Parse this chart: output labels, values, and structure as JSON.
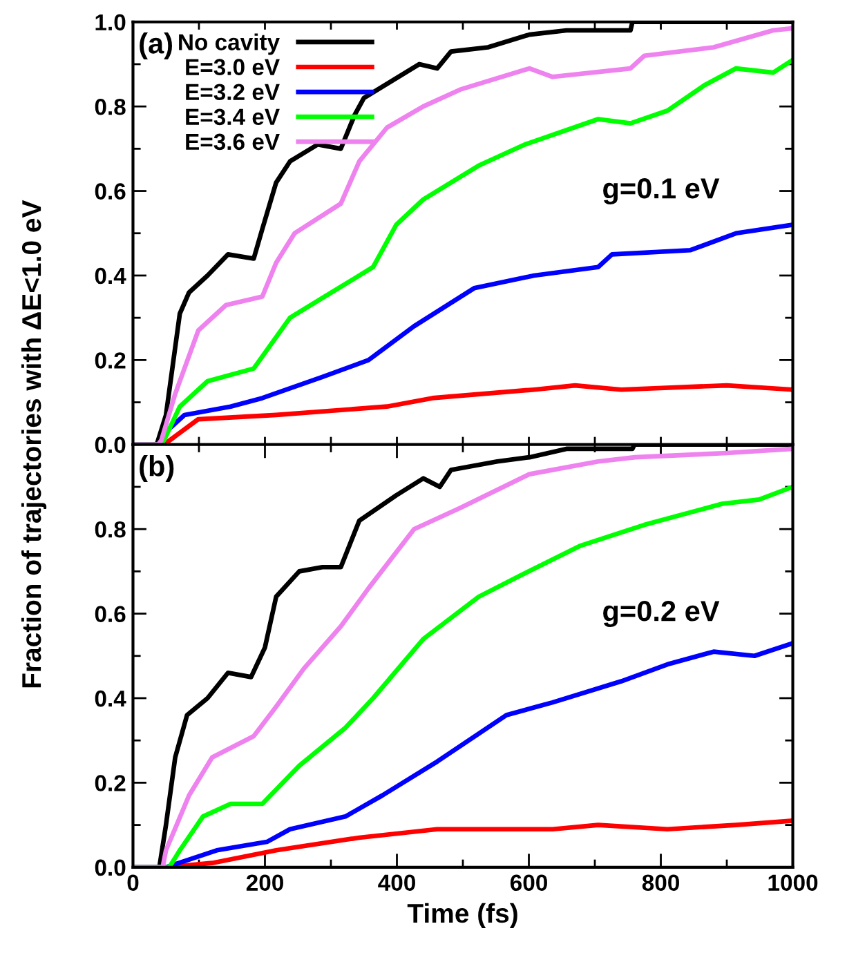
{
  "chart_data": [
    {
      "type": "line",
      "ylabel": "Fraction of trajectories with ΔE<1.0 eV",
      "annotations": [
        "(a)",
        "g=0.1 eV"
      ],
      "legend": "top left",
      "tick_labels": "y",
      "xlim": [
        0,
        1000
      ],
      "xticks": [
        {
          "value": 0,
          "label": null
        },
        {
          "value": 100,
          "label": null
        },
        {
          "value": 200,
          "label": null
        },
        {
          "value": 300,
          "label": null
        },
        {
          "value": 400,
          "label": null
        },
        {
          "value": 500,
          "label": null
        },
        {
          "value": 600,
          "label": null
        },
        {
          "value": 700,
          "label": null
        },
        {
          "value": 800,
          "label": null
        },
        {
          "value": 900,
          "label": null
        },
        {
          "value": 1000,
          "label": null
        }
      ],
      "ylim": [
        0,
        1.0
      ],
      "yticks": [
        {
          "value": 0,
          "label": "0.0"
        },
        {
          "value": 0.1,
          "label": null
        },
        0.2,
        {
          "value": 0.3,
          "label": null
        },
        0.4,
        {
          "value": 0.5,
          "label": null
        },
        0.6,
        {
          "value": 0.7,
          "label": null
        },
        0.8,
        {
          "value": 0.9,
          "label": null
        },
        {
          "value": 1.0,
          "label": "1.0"
        }
      ],
      "series": [
        {
          "name": "No cavity",
          "color": "#000000",
          "x": [
            0,
            36,
            50,
            71,
            85,
            113,
            144,
            183,
            196,
            217,
            238,
            280,
            315,
            336,
            350,
            392,
            434,
            461,
            482,
            538,
            601,
            657,
            754,
            757,
            1000
          ],
          "values": [
            0,
            0,
            0.07,
            0.31,
            0.36,
            0.4,
            0.45,
            0.44,
            0.51,
            0.62,
            0.67,
            0.71,
            0.7,
            0.78,
            0.82,
            0.86,
            0.9,
            0.89,
            0.93,
            0.94,
            0.97,
            0.98,
            0.98,
            1.0,
            1.0
          ]
        },
        {
          "name": "E=3.0 eV",
          "color": "#ff0000",
          "x": [
            0,
            47,
            99,
            217,
            385,
            454,
            608,
            670,
            740,
            900,
            1000
          ],
          "values": [
            0,
            0,
            0.06,
            0.07,
            0.09,
            0.11,
            0.13,
            0.14,
            0.13,
            0.14,
            0.13
          ]
        },
        {
          "name": "E=3.2 eV",
          "color": "#0000ff",
          "x": [
            0,
            40,
            50,
            78,
            148,
            196,
            287,
            357,
            426,
            517,
            608,
            705,
            726,
            845,
            914,
            1000
          ],
          "values": [
            0,
            0,
            0.03,
            0.07,
            0.09,
            0.11,
            0.16,
            0.2,
            0.28,
            0.37,
            0.4,
            0.42,
            0.45,
            0.46,
            0.5,
            0.52
          ]
        },
        {
          "name": "E=3.4 eV",
          "color": "#00ff00",
          "x": [
            0,
            40,
            47,
            71,
            113,
            183,
            238,
            301,
            364,
            399,
            440,
            524,
            594,
            705,
            754,
            810,
            866,
            914,
            970,
            1000
          ],
          "values": [
            0,
            0,
            0.01,
            0.09,
            0.15,
            0.18,
            0.3,
            0.36,
            0.42,
            0.52,
            0.58,
            0.66,
            0.71,
            0.77,
            0.76,
            0.79,
            0.85,
            0.89,
            0.88,
            0.91
          ]
        },
        {
          "name": "E=3.6 eV",
          "color": "#ee82ee",
          "x": [
            0,
            38,
            43,
            64,
            99,
            141,
            196,
            217,
            245,
            315,
            343,
            385,
            440,
            496,
            601,
            636,
            754,
            775,
            880,
            970,
            1000
          ],
          "values": [
            0,
            0,
            0.01,
            0.12,
            0.27,
            0.33,
            0.35,
            0.43,
            0.5,
            0.57,
            0.67,
            0.75,
            0.8,
            0.84,
            0.89,
            0.87,
            0.89,
            0.92,
            0.94,
            0.98,
            0.985
          ]
        }
      ]
    },
    {
      "type": "line",
      "xlabel": "Time (fs)",
      "annotations": [
        "(b)",
        "g=0.2 eV"
      ],
      "xlim": [
        0,
        1000
      ],
      "xticks": [
        0,
        {
          "value": 100,
          "label": null
        },
        200,
        {
          "value": 300,
          "label": null
        },
        400,
        {
          "value": 500,
          "label": null
        },
        600,
        {
          "value": 700,
          "label": null
        },
        800,
        {
          "value": 900,
          "label": null
        },
        1000
      ],
      "ylim": [
        0,
        1.0
      ],
      "yticks": [
        {
          "value": 0,
          "label": "0.0"
        },
        {
          "value": 0.1,
          "label": null
        },
        0.2,
        {
          "value": 0.3,
          "label": null
        },
        0.4,
        {
          "value": 0.5,
          "label": null
        },
        0.6,
        {
          "value": 0.7,
          "label": null
        },
        0.8,
        {
          "value": 0.9,
          "label": null
        },
        {
          "value": 1.0,
          "label": null
        }
      ],
      "series": [
        {
          "color": "#000000",
          "x": [
            0,
            40,
            50,
            64,
            82,
            113,
            144,
            179,
            200,
            217,
            252,
            287,
            315,
            343,
            399,
            440,
            465,
            482,
            552,
            601,
            657,
            757,
            760,
            1000
          ],
          "values": [
            0,
            0,
            0.1,
            0.26,
            0.36,
            0.4,
            0.46,
            0.45,
            0.52,
            0.64,
            0.7,
            0.71,
            0.71,
            0.82,
            0.88,
            0.92,
            0.9,
            0.94,
            0.96,
            0.97,
            0.99,
            0.99,
            1.0,
            1.0
          ]
        },
        {
          "color": "#ff0000",
          "x": [
            0,
            50,
            120,
            217,
            343,
            461,
            636,
            705,
            810,
            914,
            1000
          ],
          "values": [
            0,
            0,
            0.01,
            0.04,
            0.07,
            0.09,
            0.09,
            0.1,
            0.09,
            0.1,
            0.11
          ]
        },
        {
          "color": "#0000ff",
          "x": [
            0,
            50,
            127,
            203,
            238,
            322,
            378,
            461,
            566,
            636,
            740,
            810,
            880,
            942,
            1000
          ],
          "values": [
            0,
            0,
            0.04,
            0.06,
            0.09,
            0.12,
            0.17,
            0.25,
            0.36,
            0.39,
            0.44,
            0.48,
            0.51,
            0.5,
            0.53
          ]
        },
        {
          "color": "#00ff00",
          "x": [
            0,
            55,
            71,
            106,
            148,
            196,
            252,
            322,
            364,
            440,
            524,
            587,
            677,
            775,
            893,
            949,
            1000
          ],
          "values": [
            0,
            0,
            0.04,
            0.12,
            0.15,
            0.15,
            0.24,
            0.33,
            0.4,
            0.54,
            0.64,
            0.69,
            0.76,
            0.81,
            0.86,
            0.87,
            0.9
          ]
        },
        {
          "color": "#ee82ee",
          "x": [
            0,
            45,
            50,
            85,
            120,
            183,
            217,
            259,
            315,
            357,
            426,
            496,
            601,
            705,
            761,
            900,
            1000
          ],
          "values": [
            0,
            0,
            0.04,
            0.17,
            0.26,
            0.31,
            0.38,
            0.47,
            0.57,
            0.66,
            0.8,
            0.85,
            0.93,
            0.96,
            0.97,
            0.98,
            0.99
          ]
        }
      ]
    }
  ]
}
